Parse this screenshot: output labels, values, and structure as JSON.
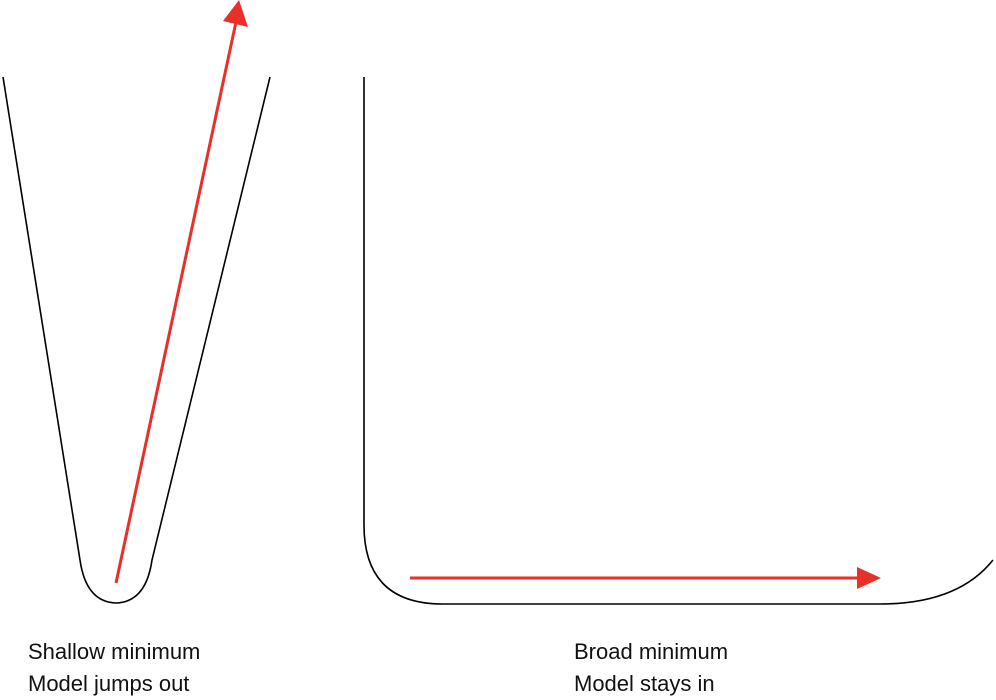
{
  "colors": {
    "curve": "#000000",
    "arrow": "#e8302a",
    "text": "#111111"
  },
  "panels": {
    "left": {
      "caption_line1": "Shallow minimum",
      "caption_line2": "Model jumps out"
    },
    "right": {
      "caption_line1": "Broad minimum",
      "caption_line2": "Model stays in"
    }
  }
}
